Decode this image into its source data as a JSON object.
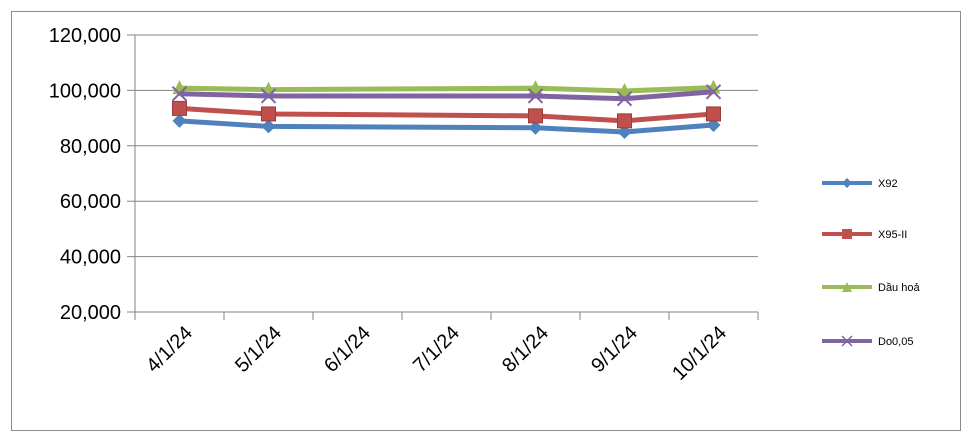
{
  "chart_data": {
    "type": "line",
    "categories": [
      "4/1/24",
      "5/1/24",
      "6/1/24",
      "7/1/24",
      "8/1/24",
      "9/1/24",
      "10/1/24"
    ],
    "x": [
      "4/1/24",
      "5/1/24",
      "8/1/24",
      "9/1/24",
      "10/1/24"
    ],
    "series": [
      {
        "name": "X92",
        "color": "#4f81bd",
        "marker": "diamond",
        "values": [
          89000,
          87000,
          86500,
          85000,
          87500
        ]
      },
      {
        "name": "X95-II",
        "color": "#c0504d",
        "marker": "square",
        "values": [
          93500,
          91500,
          90800,
          89000,
          91500
        ]
      },
      {
        "name": "Dầu hoả",
        "color": "#9bbb59",
        "marker": "triangle",
        "values": [
          100800,
          100300,
          100800,
          99800,
          101000
        ]
      },
      {
        "name": "Do0,05",
        "color": "#8064a2",
        "marker": "x",
        "values": [
          98800,
          98000,
          98000,
          97000,
          99500
        ]
      }
    ],
    "y_ticks": [
      "20,000",
      "40,000",
      "60,000",
      "80,000",
      "100,000",
      "120,000"
    ],
    "ylim": [
      20000,
      120000
    ],
    "grid": true,
    "legend": "right",
    "title": "",
    "xlabel": "",
    "ylabel": ""
  }
}
